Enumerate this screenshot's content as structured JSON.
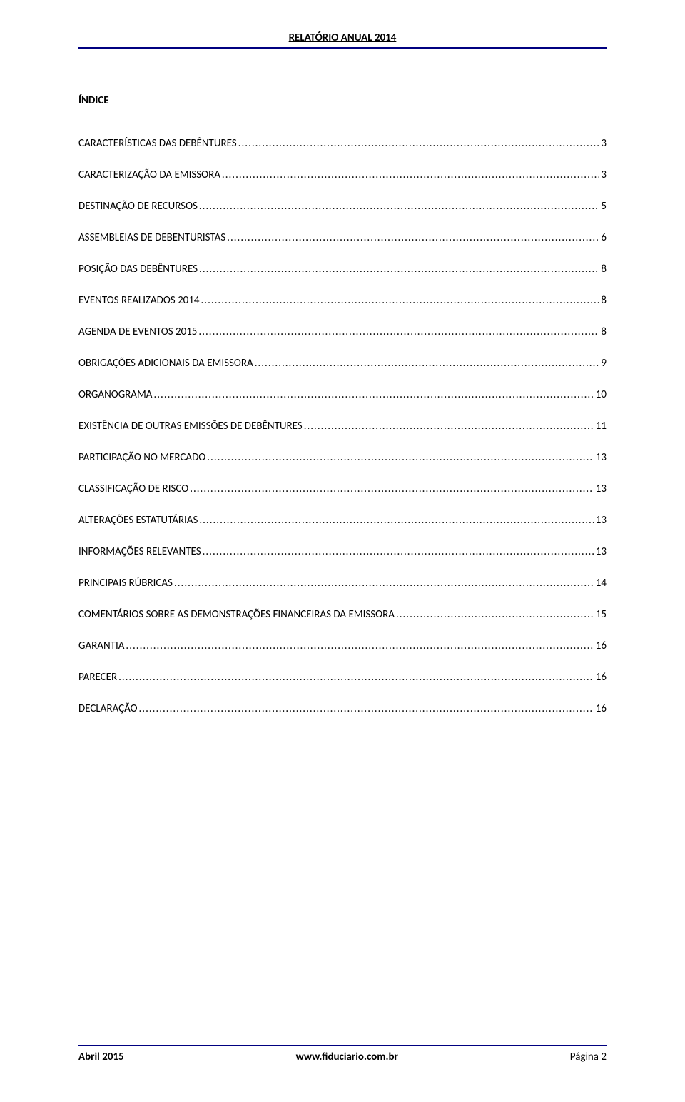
{
  "header": {
    "title": "RELATÓRIO ANUAL 2014"
  },
  "colors": {
    "rule": "#000080",
    "text": "#000000",
    "background": "#ffffff"
  },
  "typography": {
    "font_family": "Calibri",
    "body_fontsize_pt": 11,
    "heading_weight": "bold"
  },
  "section": {
    "heading": "ÍNDICE"
  },
  "toc": {
    "items": [
      {
        "label": "CARACTERÍSTICAS DAS DEBÊNTURES",
        "page": "3"
      },
      {
        "label": "CARACTERIZAÇÃO DA EMISSORA",
        "page": "3"
      },
      {
        "label": "DESTINAÇÃO DE RECURSOS",
        "page": "5"
      },
      {
        "label": "ASSEMBLEIAS DE DEBENTURISTAS",
        "page": "6"
      },
      {
        "label": "POSIÇÃO DAS DEBÊNTURES",
        "page": "8"
      },
      {
        "label": "EVENTOS REALIZADOS 2014",
        "page": "8"
      },
      {
        "label": "AGENDA DE EVENTOS 2015",
        "page": "8"
      },
      {
        "label": "OBRIGAÇÕES ADICIONAIS DA EMISSORA",
        "page": "9"
      },
      {
        "label": "ORGANOGRAMA",
        "page": "10"
      },
      {
        "label": "EXISTÊNCIA DE OUTRAS EMISSÕES DE DEBÊNTURES",
        "page": "11"
      },
      {
        "label": "PARTICIPAÇÃO NO MERCADO",
        "page": "13"
      },
      {
        "label": "CLASSIFICAÇÃO DE RISCO",
        "page": "13"
      },
      {
        "label": "ALTERAÇÕES ESTATUTÁRIAS",
        "page": "13"
      },
      {
        "label": "INFORMAÇÕES RELEVANTES",
        "page": "13"
      },
      {
        "label": "PRINCIPAIS RÚBRICAS",
        "page": "14"
      },
      {
        "label": "COMENTÁRIOS SOBRE AS DEMONSTRAÇÕES FINANCEIRAS DA EMISSORA",
        "page": "15"
      },
      {
        "label": "GARANTIA",
        "page": "16"
      },
      {
        "label": "PARECER",
        "page": "16"
      },
      {
        "label": "DECLARAÇÃO",
        "page": "16"
      }
    ]
  },
  "footer": {
    "left": "Abril 2015",
    "center": "www.fiduciario.com.br",
    "right": "Página 2"
  }
}
